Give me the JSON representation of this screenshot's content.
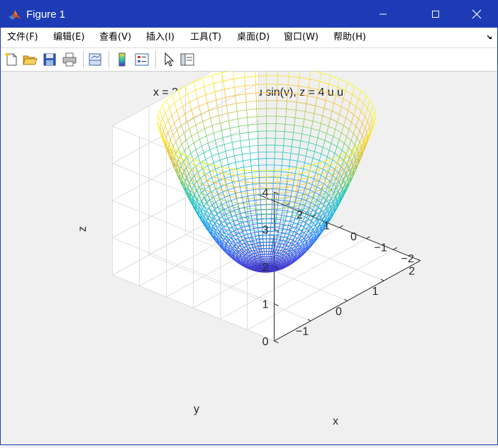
{
  "window": {
    "title": "Figure 1"
  },
  "menubar": {
    "items": [
      {
        "id": "file",
        "label": "文件(F)"
      },
      {
        "id": "edit",
        "label": "编辑(E)"
      },
      {
        "id": "view",
        "label": "查看(V)"
      },
      {
        "id": "insert",
        "label": "插入(I)"
      },
      {
        "id": "tools",
        "label": "工具(T)"
      },
      {
        "id": "desktop",
        "label": "桌面(D)"
      },
      {
        "id": "window",
        "label": "窗口(W)"
      },
      {
        "id": "help",
        "label": "帮助(H)"
      }
    ]
  },
  "toolbar": {
    "buttons": [
      "new-figure-icon",
      "open-file-icon",
      "save-icon",
      "print-icon",
      "link-plot-icon",
      "colorbar-icon",
      "legend-icon",
      "pointer-icon",
      "plot-tools-icon"
    ]
  },
  "colors": {
    "titlebar": "#1c3bb4",
    "surface_low": "#4433e8",
    "surface_mid": "#18c4c8",
    "surface_high": "#f8f82c"
  },
  "chart_data": {
    "type": "surface",
    "title": "x = 2 u cos(v), y = 3 u sin(v), z = 4 u u",
    "xlabel": "x",
    "ylabel": "y",
    "zlabel": "z",
    "xlim": [
      -2,
      2
    ],
    "ylim": [
      -3,
      3
    ],
    "zlim": [
      0,
      4
    ],
    "xticks": [
      -1,
      0,
      1,
      2
    ],
    "yticks": [
      -2,
      -1,
      0,
      1,
      2
    ],
    "zticks": [
      0,
      1,
      2,
      3,
      4
    ],
    "grid": true,
    "colormap": "parula",
    "u_range": [
      0,
      1
    ],
    "v_range": [
      0,
      6.283
    ]
  }
}
